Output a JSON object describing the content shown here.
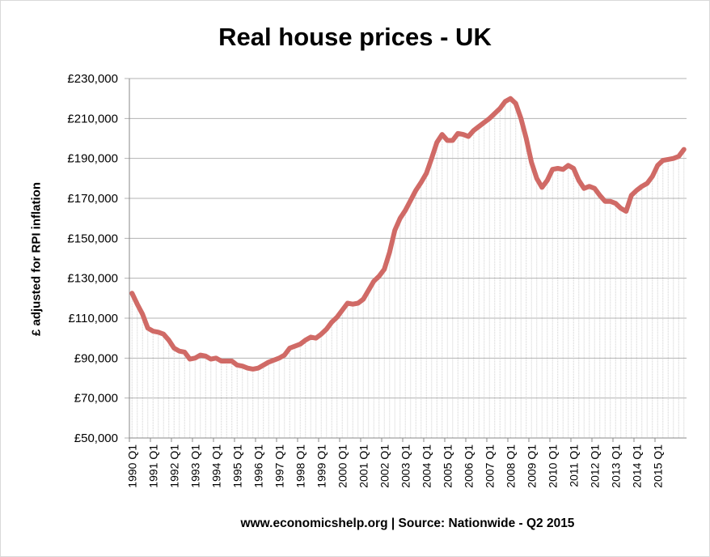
{
  "chart_data": {
    "type": "line",
    "title": "Real house prices - UK",
    "ylabel": "£ adjusted for RPI inflation",
    "xlabel": "",
    "source": "www.economicshelp.org | Source: Nationwide - Q2 2015",
    "ylim": [
      50000,
      230000
    ],
    "ytick_values": [
      50000,
      70000,
      90000,
      110000,
      130000,
      150000,
      170000,
      190000,
      210000,
      230000
    ],
    "ytick_labels": [
      "£50,000",
      "£70,000",
      "£90,000",
      "£110,000",
      "£130,000",
      "£150,000",
      "£170,000",
      "£190,000",
      "£210,000",
      "£230,000"
    ],
    "x_tick_labels": [
      "1990 Q1",
      "1991 Q1",
      "1992 Q1",
      "1993 Q1",
      "1994 Q1",
      "1995 Q1",
      "1996 Q1",
      "1997 Q1",
      "1998 Q1",
      "1999 Q1",
      "2000 Q1",
      "2001 Q1",
      "2002 Q1",
      "2003 Q1",
      "2004 Q1",
      "2005 Q1",
      "2006 Q1",
      "2007 Q1",
      "2008 Q1",
      "2009 Q1",
      "2010 Q1",
      "2011 Q1",
      "2012 Q1",
      "2013 Q1",
      "2014 Q1",
      "2015 Q1"
    ],
    "series": [
      {
        "name": "Real house prices",
        "color": "#d06a66",
        "values": [
          122500,
          117000,
          112000,
          105000,
          103500,
          103000,
          102000,
          99000,
          95000,
          93500,
          93000,
          89500,
          90000,
          91500,
          91000,
          89500,
          90000,
          88500,
          88500,
          88500,
          86500,
          86000,
          85000,
          84500,
          85000,
          86500,
          88000,
          89000,
          90000,
          91500,
          95000,
          96000,
          97000,
          99000,
          100500,
          100000,
          102000,
          104500,
          108000,
          110500,
          114000,
          117500,
          117000,
          117500,
          119500,
          124000,
          128500,
          131000,
          134500,
          143000,
          154000,
          160000,
          164000,
          169000,
          174000,
          178000,
          182500,
          190000,
          198000,
          202000,
          199000,
          199000,
          202500,
          202000,
          201000,
          204000,
          206000,
          208000,
          210000,
          212500,
          215000,
          218500,
          220000,
          217500,
          210000,
          200000,
          188000,
          180000,
          175500,
          179000,
          184500,
          185000,
          184500,
          186500,
          185000,
          179000,
          175000,
          176000,
          175000,
          171500,
          168500,
          168500,
          167500,
          165000,
          163500,
          171500,
          174000,
          176000,
          177500,
          181000,
          186500,
          189000,
          189500,
          190000,
          191000,
          194500
        ]
      }
    ]
  }
}
